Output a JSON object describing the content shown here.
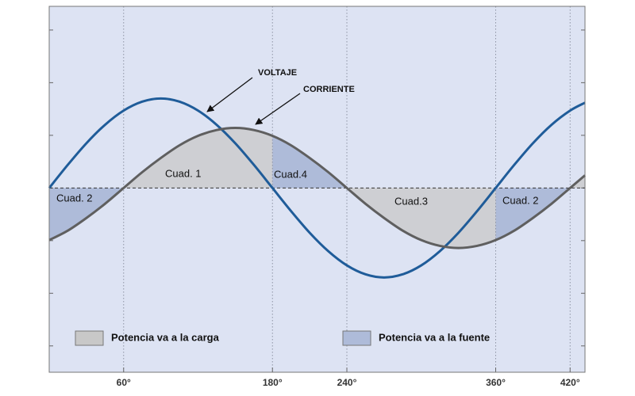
{
  "chart_data": {
    "type": "line",
    "x": [
      0,
      15,
      30,
      45,
      60,
      75,
      90,
      105,
      120,
      135,
      150,
      165,
      180,
      195,
      210,
      225,
      240,
      255,
      270,
      285,
      300,
      315,
      330,
      345,
      360,
      375,
      390,
      405,
      420,
      432
    ],
    "series": [
      {
        "name": "VOLTAJE",
        "color": "#1f5c99",
        "values": [
          0,
          0.44,
          0.85,
          1.2,
          1.47,
          1.64,
          1.7,
          1.64,
          1.47,
          1.2,
          0.85,
          0.44,
          0,
          -0.44,
          -0.85,
          -1.2,
          -1.47,
          -1.64,
          -1.7,
          -1.64,
          -1.47,
          -1.2,
          -0.85,
          -0.44,
          0,
          0.44,
          0.85,
          1.2,
          1.47,
          1.62
        ]
      },
      {
        "name": "CORRIENTE",
        "color": "#5f5f5f",
        "values": [
          -0.99,
          -0.81,
          -0.57,
          -0.3,
          0,
          0.3,
          0.57,
          0.81,
          0.99,
          1.1,
          1.14,
          1.1,
          0.99,
          0.81,
          0.57,
          0.3,
          0,
          -0.3,
          -0.57,
          -0.81,
          -0.99,
          -1.1,
          -1.14,
          -1.1,
          -0.99,
          -0.81,
          -0.57,
          -0.3,
          0,
          0.24
        ]
      }
    ],
    "xlim": [
      0,
      432
    ],
    "ylim": [
      -3.5,
      3.45
    ],
    "xticks": [
      {
        "value": 60,
        "label": "60°"
      },
      {
        "value": 180,
        "label": "180°"
      },
      {
        "value": 240,
        "label": "240°"
      },
      {
        "value": 360,
        "label": "360°"
      },
      {
        "value": 420,
        "label": "420°"
      }
    ],
    "yticks": [
      -3,
      -2,
      -1,
      0,
      1,
      2,
      3
    ],
    "grid": true,
    "legend": [
      {
        "label": "Potencia va a la carga",
        "color": "#c8c8c8"
      },
      {
        "label": "Potencia va a la fuente",
        "color": "#aebbd9"
      }
    ],
    "regions": [
      "Cuad. 2",
      "Cuad. 1",
      "Cuad.4",
      "Cuad.3",
      "Cuad. 2"
    ],
    "plot_background": "#dde3f3"
  }
}
